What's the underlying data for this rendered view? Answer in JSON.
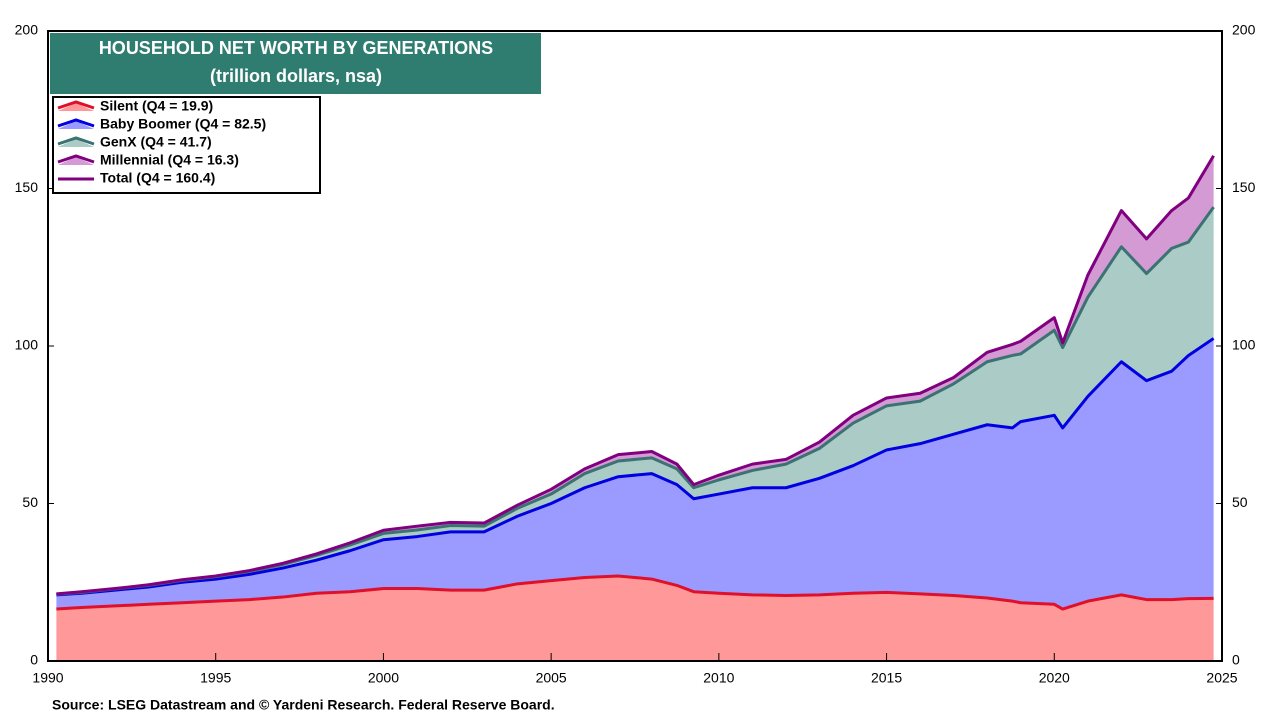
{
  "chart_data": {
    "type": "stacked_area",
    "title": "HOUSEHOLD NET WORTH BY GENERATIONS",
    "subtitle": "(trillion dollars, nsa)",
    "source": "Source: LSEG Datastream and © Yardeni Research. Federal Reserve Board.",
    "x": [
      1990.25,
      1991,
      1992,
      1993,
      1994,
      1995,
      1996,
      1997,
      1998,
      1999,
      2000,
      2001,
      2002,
      2003,
      2004,
      2005,
      2006,
      2007,
      2008,
      2008.75,
      2009.25,
      2010,
      2011,
      2012,
      2013,
      2014,
      2015,
      2016,
      2017,
      2018,
      2018.75,
      2019,
      2020,
      2020.25,
      2021,
      2022,
      2022.75,
      2023.5,
      2024,
      2024.75
    ],
    "series": [
      {
        "name": "Silent (Q4 = 19.9)",
        "color": "#ff9999",
        "line_color": "#e0102a",
        "values": [
          16.5,
          17,
          17.5,
          18,
          18.5,
          19,
          19.5,
          20.3,
          21.5,
          22,
          23,
          23,
          22.5,
          22.5,
          24.5,
          25.5,
          26.5,
          27,
          26,
          24,
          22,
          21.5,
          21,
          20.8,
          21,
          21.5,
          21.8,
          21.3,
          20.8,
          20,
          19,
          18.5,
          18,
          16.5,
          19,
          21,
          19.5,
          19.5,
          19.8,
          19.9
        ]
      },
      {
        "name": "Baby Boomer (Q4 = 82.5)",
        "color": "#9b9bff",
        "line_color": "#0000e0",
        "values": [
          4.5,
          4.5,
          5,
          5.5,
          6.5,
          7,
          8,
          9.2,
          10.5,
          13,
          15.5,
          16.5,
          18.5,
          18.5,
          21.5,
          24.5,
          28.5,
          31.5,
          33.5,
          32,
          29.5,
          31.5,
          34,
          34.2,
          37,
          40.5,
          45.2,
          47.7,
          51.2,
          55,
          55,
          57.5,
          60,
          57.5,
          65,
          74,
          69.5,
          72.5,
          77.2,
          82.5
        ]
      },
      {
        "name": "GenX (Q4 = 41.7)",
        "color": "#aacbc6",
        "line_color": "#3b7272",
        "values": [
          0.2,
          0.3,
          0.4,
          0.5,
          0.6,
          0.8,
          0.9,
          1.1,
          1.5,
          1.8,
          2,
          2.1,
          2,
          1.8,
          2.5,
          3,
          4.5,
          5,
          5,
          5,
          3.5,
          4.5,
          5.5,
          7.5,
          9.5,
          13.5,
          14,
          13.5,
          16,
          20,
          23,
          21.5,
          27,
          25.5,
          31.5,
          36.5,
          34,
          39,
          36,
          41.7
        ]
      },
      {
        "name": "Millennial (Q4 = 16.3)",
        "color": "#d49ad4",
        "line_color": "#800080",
        "values": [
          0.1,
          0.2,
          0.1,
          0.2,
          0.2,
          0.2,
          0.3,
          0.4,
          0.5,
          0.7,
          1,
          1.2,
          1,
          1,
          1,
          1.5,
          1.5,
          2,
          2,
          1.5,
          1,
          1.5,
          2,
          1.5,
          2,
          2.5,
          2.5,
          2.5,
          2,
          3,
          3.5,
          4,
          4,
          1.5,
          7,
          11.5,
          11,
          12,
          14,
          16.3
        ]
      }
    ],
    "total": {
      "name": "Total (Q4 = 160.4)",
      "color": "#800080",
      "values": [
        21.3,
        22,
        23,
        24.2,
        25.8,
        27,
        28.7,
        31,
        34,
        37.5,
        41.5,
        42.8,
        44,
        43.8,
        49.5,
        54.5,
        61,
        65.5,
        66.5,
        62.5,
        56,
        59,
        62.5,
        64,
        69.5,
        78,
        83.5,
        85,
        90,
        98,
        100.5,
        101.5,
        109,
        101,
        122.5,
        143,
        134,
        143,
        147,
        160.4
      ]
    },
    "xlim": [
      1990,
      2025
    ],
    "xticks": [
      1990,
      1995,
      2000,
      2005,
      2010,
      2015,
      2020,
      2025
    ],
    "ylim": [
      0,
      200
    ],
    "yticks": [
      0,
      50,
      100,
      150,
      200
    ],
    "y2lim": [
      0,
      200
    ],
    "y2ticks": [
      0,
      50,
      100,
      150,
      200
    ]
  }
}
